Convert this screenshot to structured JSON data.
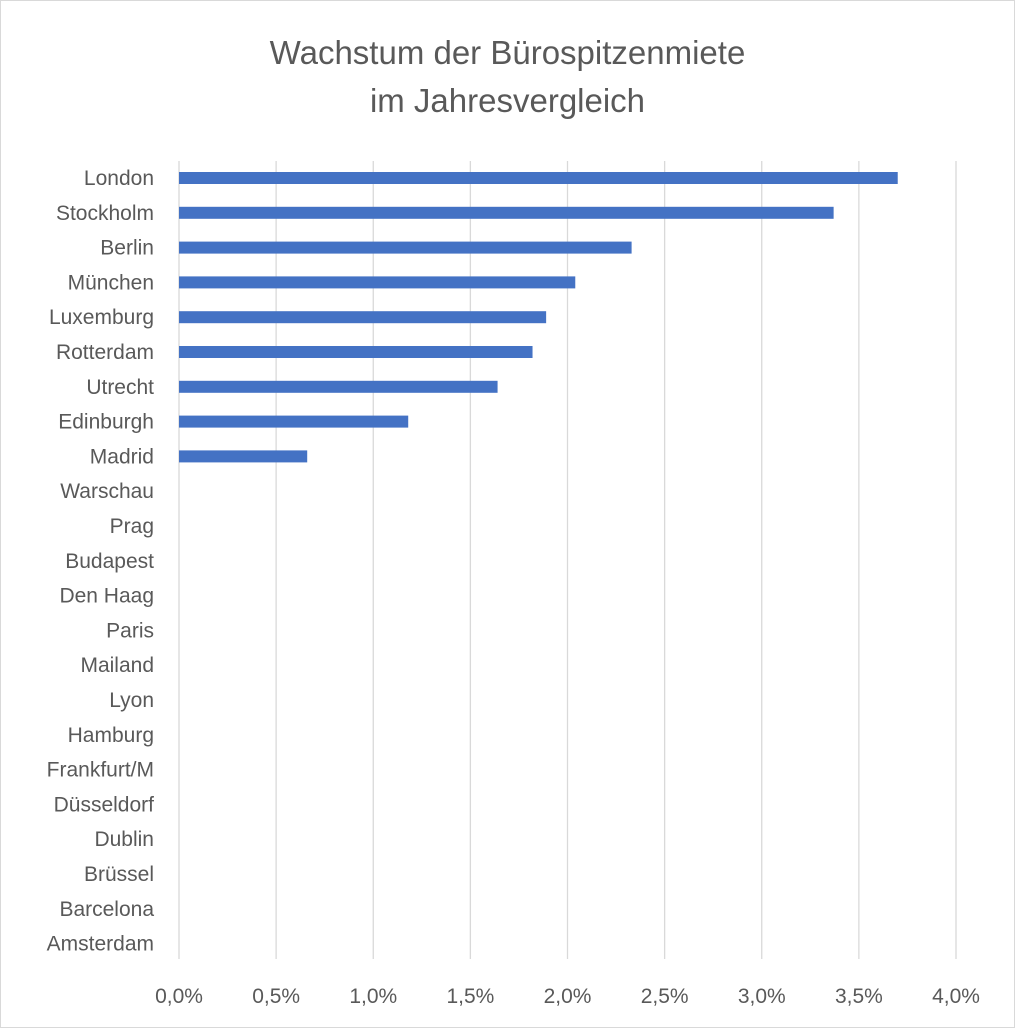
{
  "chart_data": {
    "type": "bar",
    "orientation": "horizontal",
    "title_lines": [
      "Wachstum der Bürospitzenmiete",
      "im Jahresvergleich"
    ],
    "categories": [
      "London",
      "Stockholm",
      "Berlin",
      "München",
      "Luxemburg",
      "Rotterdam",
      "Utrecht",
      "Edinburgh",
      "Madrid",
      "Warschau",
      "Prag",
      "Budapest",
      "Den Haag",
      "Paris",
      "Mailand",
      "Lyon",
      "Hamburg",
      "Frankfurt/M",
      "Düsseldorf",
      "Dublin",
      "Brüssel",
      "Barcelona",
      "Amsterdam"
    ],
    "values": [
      3.7,
      3.37,
      2.33,
      2.04,
      1.89,
      1.82,
      1.64,
      1.18,
      0.66,
      0,
      0,
      0,
      0,
      0,
      0,
      0,
      0,
      0,
      0,
      0,
      0,
      0,
      0
    ],
    "xlim": [
      0,
      4
    ],
    "xticks": [
      0,
      0.5,
      1,
      1.5,
      2,
      2.5,
      3,
      3.5,
      4
    ],
    "xtick_labels": [
      "0,0%",
      "0,5%",
      "1,0%",
      "1,5%",
      "2,0%",
      "2,5%",
      "3,0%",
      "3,5%",
      "4,0%"
    ],
    "bar_color": "#4472c4",
    "grid": true,
    "legend": "none"
  }
}
